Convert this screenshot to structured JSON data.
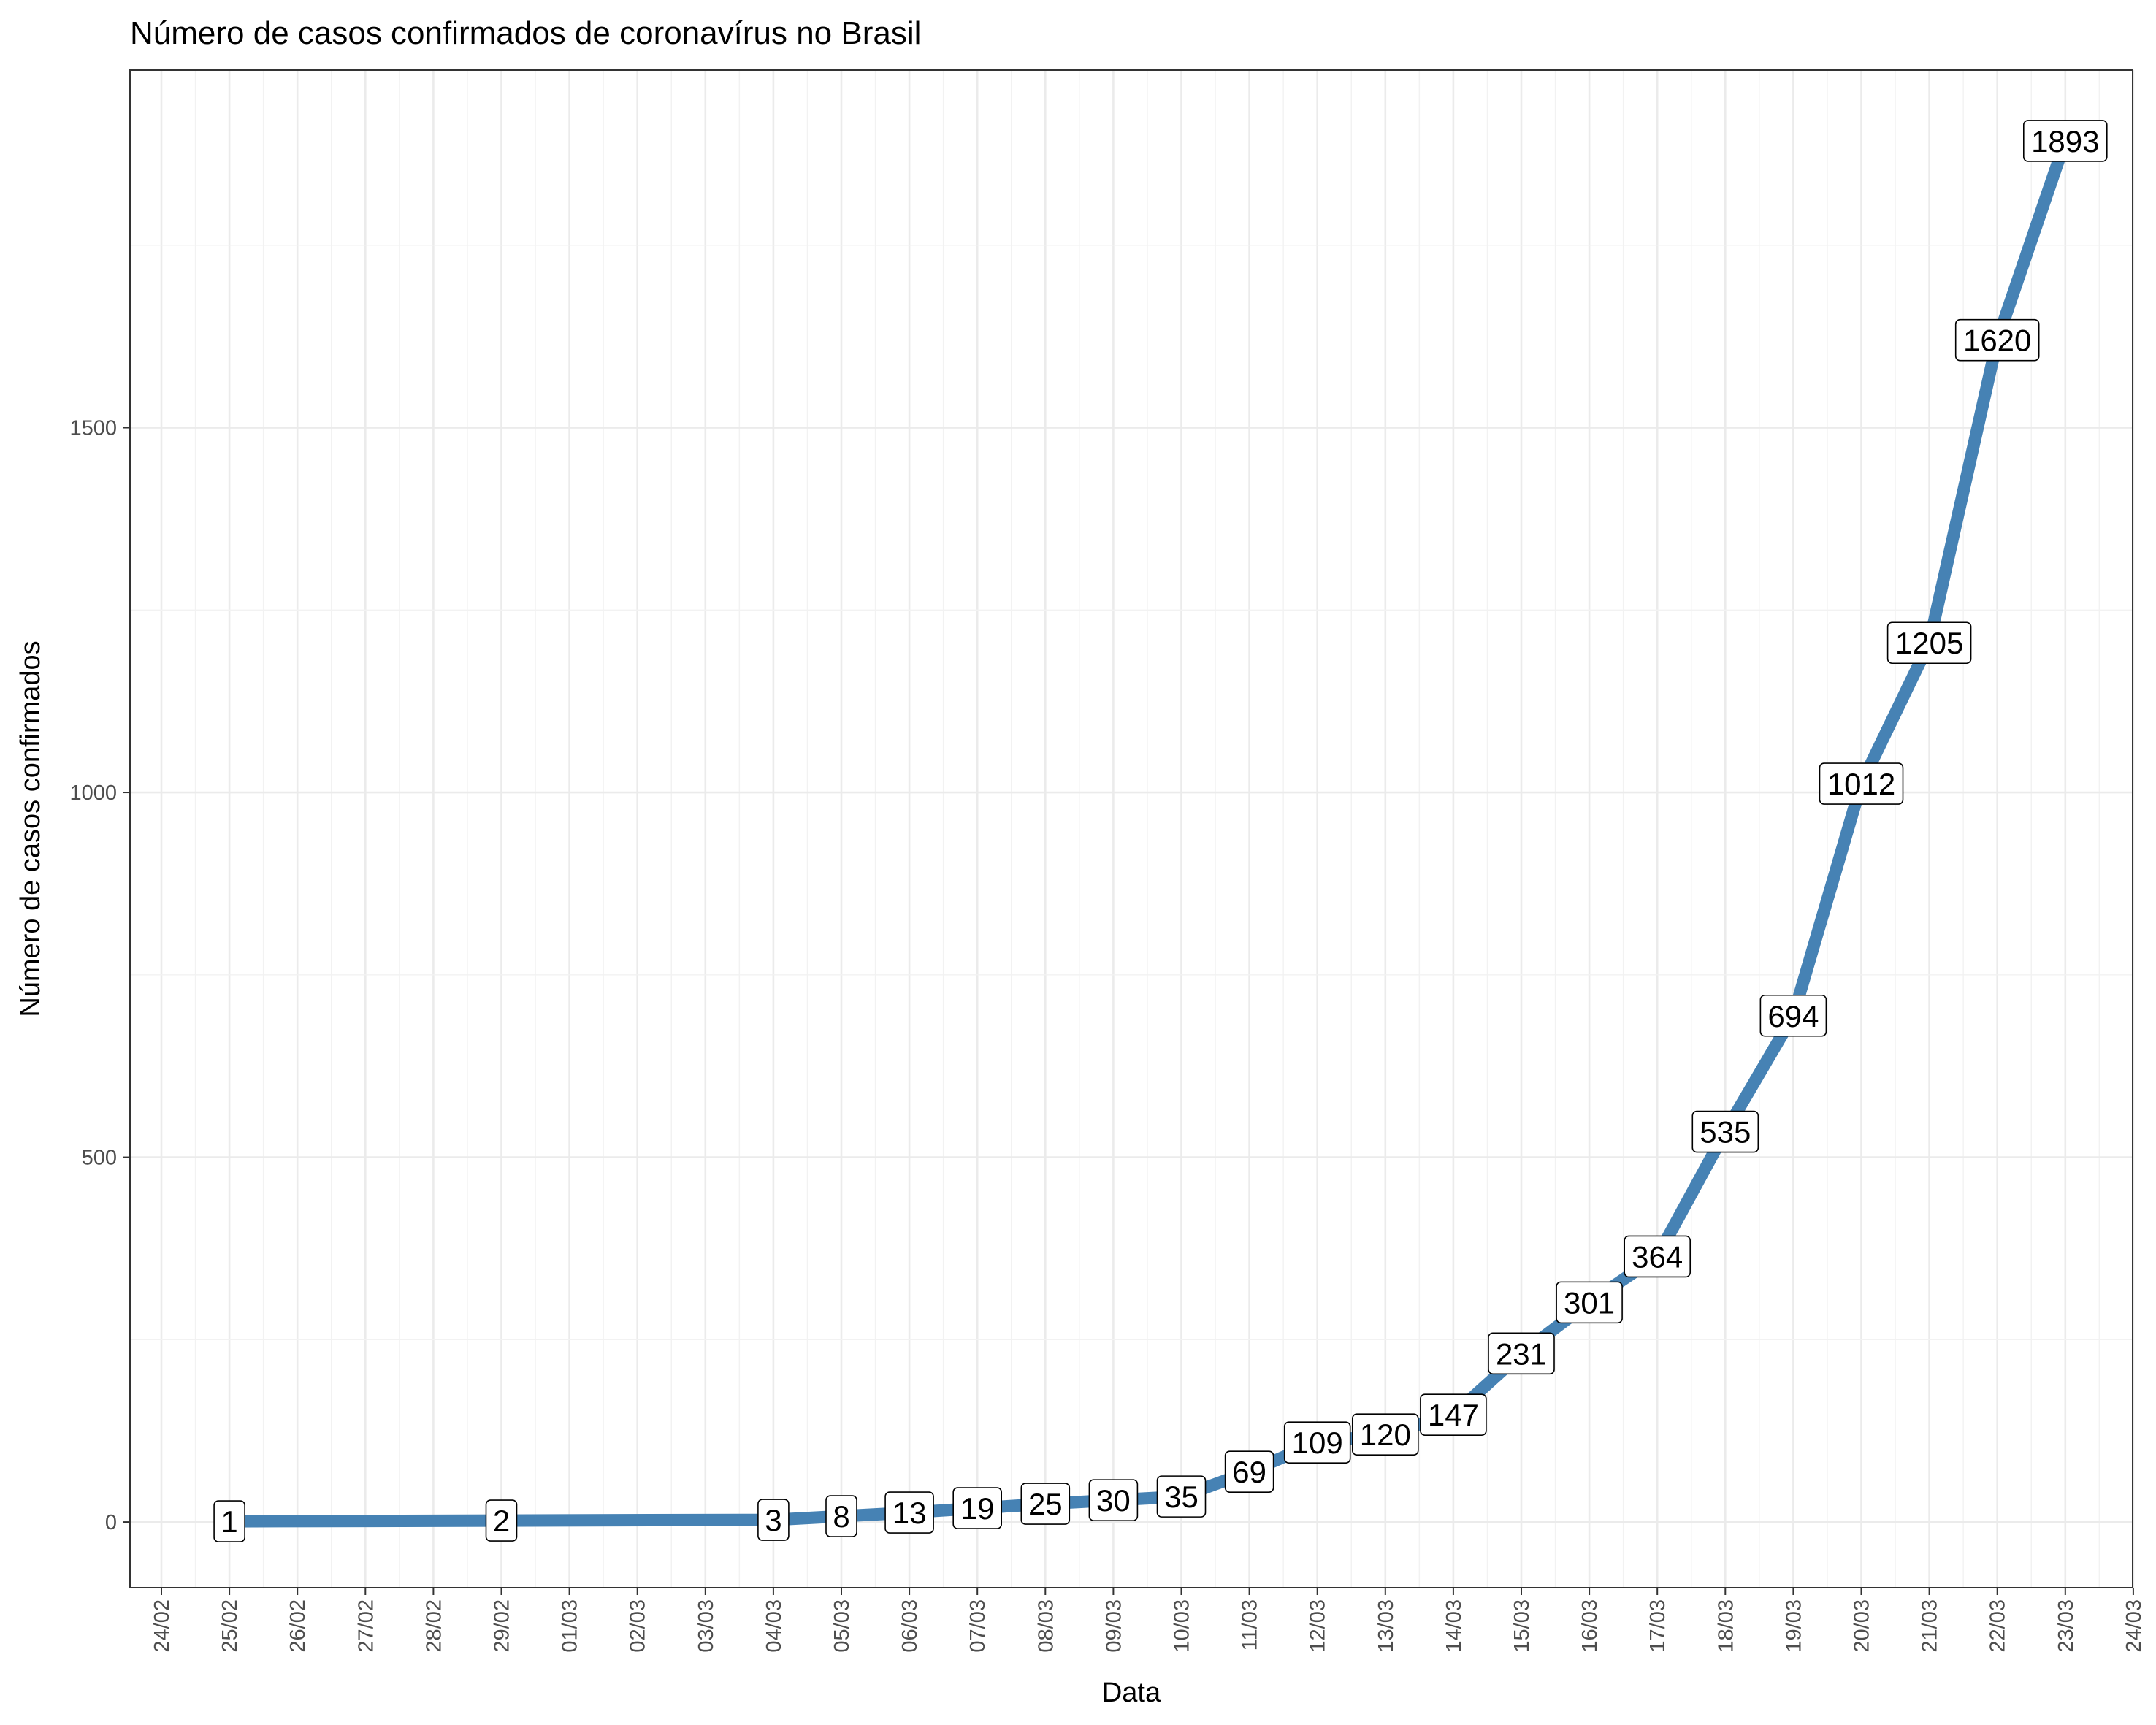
{
  "chart_data": {
    "type": "line",
    "title": "Número de casos confirmados de coronavírus no Brasil",
    "xlabel": "Data",
    "ylabel": "Número de casos confirmados",
    "x_ticks": [
      "24/02",
      "25/02",
      "26/02",
      "27/02",
      "28/02",
      "29/02",
      "01/03",
      "02/03",
      "03/03",
      "04/03",
      "05/03",
      "06/03",
      "07/03",
      "08/03",
      "09/03",
      "10/03",
      "11/03",
      "12/03",
      "13/03",
      "14/03",
      "15/03",
      "16/03",
      "17/03",
      "18/03",
      "19/03",
      "20/03",
      "21/03",
      "22/03",
      "23/03",
      "24/03"
    ],
    "y_ticks": [
      0,
      500,
      1000,
      1500
    ],
    "ylim": [
      -90,
      1990
    ],
    "grid": true,
    "series": [
      {
        "color": "#4682b4",
        "x": [
          "25/02",
          "29/02",
          "04/03",
          "05/03",
          "06/03",
          "07/03",
          "08/03",
          "09/03",
          "10/03",
          "11/03",
          "12/03",
          "13/03",
          "14/03",
          "15/03",
          "16/03",
          "17/03",
          "18/03",
          "19/03",
          "20/03",
          "21/03",
          "22/03",
          "23/03"
        ],
        "values": [
          1,
          2,
          3,
          8,
          13,
          19,
          25,
          30,
          35,
          69,
          109,
          120,
          147,
          231,
          301,
          364,
          535,
          694,
          1012,
          1205,
          1620,
          1893
        ]
      }
    ]
  }
}
